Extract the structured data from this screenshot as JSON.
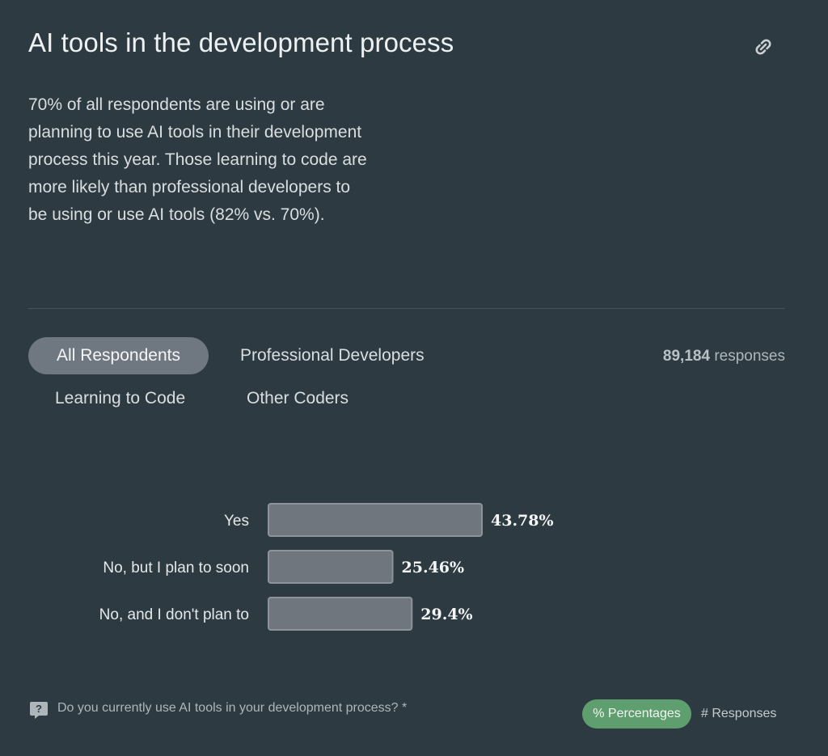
{
  "header": {
    "title": "AI tools in the development process",
    "link_icon": "link-icon"
  },
  "description": "70% of all respondents are using or are planning to use AI tools in their development process this year. Those learning to code are more likely than professional developers to be using or use AI tools (82% vs. 70%).",
  "tabs": [
    {
      "label": "All Respondents",
      "selected": true
    },
    {
      "label": "Professional Developers",
      "selected": false
    },
    {
      "label": "Learning to Code",
      "selected": false
    },
    {
      "label": "Other Coders",
      "selected": false
    }
  ],
  "responses": {
    "count": "89,184",
    "label": "responses"
  },
  "chart_data": {
    "type": "bar",
    "orientation": "horizontal",
    "categories": [
      "Yes",
      "No, but I plan to soon",
      "No, and I don't plan to"
    ],
    "values": [
      43.78,
      25.46,
      29.4
    ],
    "value_labels": [
      "43.78%",
      "25.46%",
      "29.4%"
    ],
    "title": "",
    "xlabel": "",
    "ylabel": "",
    "grid": false,
    "bar_color": "#6f767e"
  },
  "footer": {
    "question_icon": "help-icon",
    "question": "Do you currently use AI tools in your development process? *",
    "toggle_percentages": "% Percentages",
    "toggle_responses": "# Responses",
    "active_toggle_color": "#5f9e6f"
  }
}
